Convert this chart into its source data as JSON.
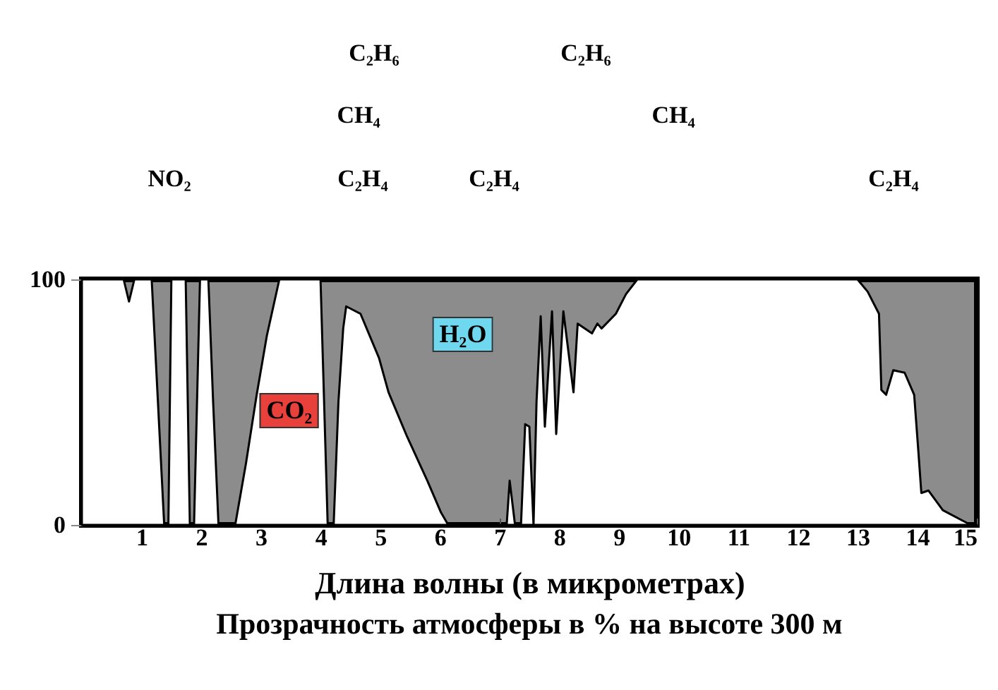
{
  "chart_data": {
    "type": "area",
    "title": "Прозрачность атмосферы в % на высоте 300 м",
    "xlabel": "Длина волны (в микрометрах)",
    "x": [
      0,
      0.7,
      0.79,
      0.88,
      1.17,
      1.38,
      1.45,
      1.5,
      1.74,
      1.81,
      1.88,
      1.98,
      2.12,
      2.2,
      2.29,
      2.57,
      2.75,
      2.93,
      3.1,
      3.31,
      4.0,
      4.12,
      4.22,
      4.3,
      4.38,
      4.43,
      4.67,
      4.98,
      5.14,
      5.45,
      5.79,
      6.02,
      6.14,
      7.12,
      7.17,
      7.26,
      7.36,
      7.43,
      7.5,
      7.57,
      7.62,
      7.69,
      7.76,
      7.88,
      7.95,
      8.07,
      8.24,
      8.31,
      8.55,
      8.64,
      8.71,
      8.95,
      9.12,
      9.31,
      13.0,
      13.17,
      13.36,
      13.4,
      13.48,
      13.6,
      13.79,
      13.95,
      14.02,
      14.07,
      14.19,
      14.43,
      14.74,
      14.9,
      15
    ],
    "series": [
      {
        "color": "#ffffff",
        "values": [
          100,
          100,
          91,
          100,
          100,
          0,
          0,
          100,
          100,
          0,
          0,
          100,
          100,
          50,
          0,
          0,
          25,
          53,
          77,
          100,
          100,
          0,
          0,
          50,
          80,
          89,
          86,
          68,
          54,
          36,
          18,
          5,
          0,
          0,
          18,
          0,
          0,
          41,
          40,
          0,
          50,
          85,
          40,
          87,
          37,
          87,
          54,
          82,
          78,
          82,
          80,
          86,
          94,
          100,
          100,
          95,
          86,
          55,
          53,
          63,
          62,
          53,
          30,
          13,
          14,
          6,
          2,
          0,
          0
        ]
      }
    ],
    "xlim": [
      0,
      15
    ],
    "xticks": [
      1,
      2,
      3,
      4,
      5,
      6,
      7,
      8,
      9,
      10,
      11,
      12,
      13,
      14,
      15
    ],
    "ylim": [
      0,
      100
    ],
    "yticks": [
      0,
      100
    ],
    "annotations": [
      "C₂H₆",
      "C₂H₆",
      "CH₄",
      "CH₄",
      "NO₂",
      "C₂H₄",
      "C₂H₄",
      "C₂H₄",
      "H₂O",
      "CO₂"
    ]
  }
}
